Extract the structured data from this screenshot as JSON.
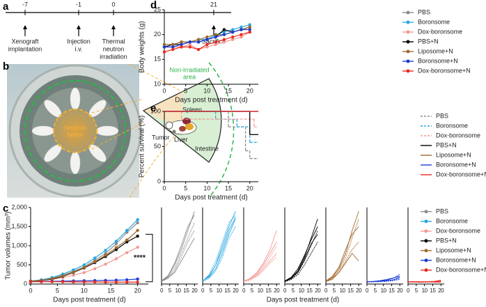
{
  "timeline": {
    "panel": "a",
    "events": [
      {
        "day": -7,
        "label": [
          "Xenograft",
          "implantation"
        ]
      },
      {
        "day": -1,
        "label": [
          "Injection",
          "i.v."
        ]
      },
      {
        "day": 0,
        "label": [
          "Thermal",
          "neutron",
          "irradiation"
        ]
      },
      {
        "day": 21,
        "label": [
          "Sacrifice"
        ]
      }
    ]
  },
  "diagram": {
    "panel": "b",
    "beam": [
      "Neutron",
      "beam"
    ],
    "area": [
      "Non-irradiated",
      "area"
    ],
    "organs": [
      "Spleen",
      "Tumor",
      "Liver",
      "Intestine"
    ]
  },
  "chart_data": [
    {
      "panel": "c",
      "type": "line",
      "ylabel": "Tumor volumes (mm³)",
      "xlabel": "Days post treatment (d)",
      "annotation": "****",
      "x": [
        0,
        2,
        4,
        6,
        8,
        10,
        12,
        14,
        16,
        18,
        20
      ],
      "xlim": [
        0,
        22
      ],
      "ylim": [
        0,
        2000
      ],
      "xticks": [
        0,
        5,
        10,
        15,
        20
      ],
      "yticks": [
        0,
        500,
        {
          "value": 1000,
          "label": "1,000"
        },
        {
          "value": 1500,
          "label": "1,500"
        },
        {
          "value": 2000,
          "label": "2,000"
        }
      ],
      "series": [
        {
          "name": "PBS",
          "color": "#8c8c8c",
          "values": [
            80,
            100,
            150,
            230,
            330,
            450,
            620,
            800,
            1050,
            1350,
            1600
          ]
        },
        {
          "name": "Boronsome",
          "color": "#2aa7e0",
          "values": [
            80,
            110,
            170,
            260,
            370,
            500,
            680,
            880,
            1120,
            1400,
            1680
          ]
        },
        {
          "name": "Dox-boronsome",
          "color": "#f29b94",
          "values": [
            70,
            90,
            120,
            170,
            230,
            300,
            400,
            520,
            660,
            820,
            960
          ]
        },
        {
          "name": "PBS+N",
          "color": "#000000",
          "values": [
            70,
            90,
            130,
            200,
            300,
            420,
            560,
            720,
            900,
            1100,
            1250
          ]
        },
        {
          "name": "Liposome+N",
          "color": "#a06a2c",
          "values": [
            75,
            95,
            140,
            210,
            310,
            430,
            580,
            750,
            950,
            1150,
            1400
          ]
        },
        {
          "name": "Boronsome+N",
          "color": "#1a3bd6",
          "values": [
            60,
            65,
            70,
            75,
            80,
            85,
            90,
            95,
            100,
            110,
            130
          ]
        },
        {
          "name": "Dox-boronsome+N",
          "color": "#ea2a1f",
          "values": [
            60,
            60,
            60,
            60,
            55,
            55,
            55,
            50,
            50,
            50,
            50
          ]
        }
      ]
    },
    {
      "type": "line",
      "xlabel": "Days post treatment (d)",
      "x": [
        0,
        4,
        8,
        12,
        16,
        20
      ],
      "xlim": [
        0,
        22
      ],
      "ylim": [
        0,
        2000
      ],
      "xticks": [
        0,
        5,
        10,
        15,
        20
      ],
      "panels": [
        {
          "color": "#8c8c8c",
          "lines": [
            [
              80,
              200,
              500,
              900,
              1400,
              1900
            ],
            [
              70,
              180,
              400,
              800,
              1200,
              1600
            ],
            [
              90,
              220,
              550,
              1000,
              1500,
              1800
            ],
            [
              60,
              150,
              350,
              700,
              1100,
              1400
            ],
            [
              80,
              160,
              300,
              600,
              900,
              1200
            ]
          ]
        },
        {
          "color": "#2aa7e0",
          "lines": [
            [
              80,
              200,
              500,
              1000,
              1500,
              1900
            ],
            [
              70,
              250,
              600,
              1100,
              1600,
              1800
            ],
            [
              90,
              180,
              400,
              800,
              1300,
              1700
            ],
            [
              60,
              150,
              350,
              700,
              1200,
              1500
            ],
            [
              80,
              220,
              500,
              900,
              1400,
              1750
            ]
          ]
        },
        {
          "color": "#f29b94",
          "lines": [
            [
              70,
              150,
              300,
              550,
              900,
              1400
            ],
            [
              60,
              120,
              250,
              450,
              700,
              1000
            ],
            [
              80,
              130,
              220,
              400,
              600,
              800
            ],
            [
              60,
              100,
              200,
              350,
              550,
              700
            ],
            [
              70,
              140,
              280,
              500,
              800,
              1100
            ]
          ]
        },
        {
          "color": "#000000",
          "lines": [
            [
              70,
              160,
              350,
              700,
              1200,
              1700
            ],
            [
              60,
              140,
              300,
              600,
              1000,
              1400
            ],
            [
              80,
              180,
              400,
              750,
              1150,
              1500
            ],
            [
              60,
              120,
              250,
              500,
              800,
              1100
            ],
            [
              70,
              150,
              320,
              650,
              1050,
              1300
            ]
          ]
        },
        {
          "color": "#a06a2c",
          "lines": [
            [
              70,
              180,
              400,
              800,
              1400,
              1900
            ],
            [
              60,
              150,
              350,
              700,
              1200,
              1700
            ],
            [
              80,
              200,
              450,
              900,
              1300,
              1500
            ],
            [
              60,
              120,
              300,
              600,
              900,
              1100
            ],
            [
              70,
              140,
              300,
              550,
              800,
              600
            ]
          ]
        },
        {
          "color": "#1a3bd6",
          "lines": [
            [
              60,
              70,
              80,
              100,
              150,
              250
            ],
            [
              50,
              60,
              70,
              80,
              100,
              150
            ],
            [
              60,
              70,
              90,
              120,
              160,
              200
            ],
            [
              50,
              55,
              60,
              70,
              90,
              120
            ],
            [
              60,
              65,
              75,
              85,
              110,
              180
            ]
          ]
        },
        {
          "color": "#ea2a1f",
          "lines": [
            [
              60,
              60,
              55,
              55,
              50,
              50
            ],
            [
              50,
              55,
              60,
              65,
              70,
              80
            ],
            [
              60,
              55,
              50,
              60,
              70,
              100
            ],
            [
              50,
              50,
              45,
              50,
              55,
              60
            ],
            [
              60,
              65,
              60,
              55,
              60,
              70
            ]
          ]
        }
      ]
    },
    {
      "panel": "d",
      "type": "line",
      "ylabel": "Body weights (g)",
      "xlabel": "Days post treatment (d)",
      "x": [
        0,
        2,
        4,
        6,
        8,
        10,
        12,
        14,
        16,
        18,
        20
      ],
      "xlim": [
        0,
        22
      ],
      "ylim": [
        10,
        25
      ],
      "xticks": [
        0,
        5,
        10,
        15,
        20
      ],
      "yticks": [
        10,
        15,
        20,
        25
      ],
      "series": [
        {
          "name": "PBS",
          "color": "#8c8c8c",
          "values": [
            18,
            18,
            18.5,
            18.5,
            19,
            19,
            19.5,
            20,
            20.5,
            21,
            21.5
          ]
        },
        {
          "name": "Boronsome",
          "color": "#2aa7e0",
          "values": [
            18,
            18,
            18.5,
            18.5,
            19,
            19,
            20,
            20.5,
            21,
            21.5,
            22
          ]
        },
        {
          "name": "Dox-boronsome",
          "color": "#f29b94",
          "values": [
            17.5,
            17.5,
            17.5,
            18,
            17,
            17.5,
            18,
            18.5,
            19,
            19.5,
            20.5
          ]
        },
        {
          "name": "PBS+N",
          "color": "#000000",
          "values": [
            17.5,
            18,
            18,
            18.5,
            18.5,
            19,
            19.5,
            21,
            20.5,
            21,
            21.5
          ]
        },
        {
          "name": "Liposome+N",
          "color": "#a06a2c",
          "values": [
            18,
            18,
            18.5,
            18.5,
            19,
            19.5,
            20,
            20,
            20.5,
            21,
            21.5
          ]
        },
        {
          "name": "Boronsome+N",
          "color": "#1a3bd6",
          "values": [
            17.5,
            17.5,
            18,
            18.5,
            18.5,
            19,
            19.5,
            20,
            20.5,
            21,
            21
          ]
        },
        {
          "name": "Dox-boronsome+N",
          "color": "#ea2a1f",
          "values": [
            16.5,
            17,
            17.5,
            17.5,
            17,
            18,
            18.5,
            19,
            19.5,
            20,
            20.5
          ]
        }
      ]
    },
    {
      "panel": "e",
      "type": "step",
      "ylabel": "Percent survival (%)",
      "xlabel": "Days post treatment (d)",
      "xlim": [
        0,
        22
      ],
      "ylim": [
        0,
        100
      ],
      "xticks": [
        0,
        5,
        10,
        15,
        20
      ],
      "yticks": [
        0,
        50,
        100
      ],
      "series": [
        {
          "name": "PBS",
          "color": "#8c8c8c",
          "linestyle": "dashed",
          "x": [
            0,
            15,
            19,
            20,
            22
          ],
          "values": [
            100,
            78,
            44,
            33,
            33
          ]
        },
        {
          "name": "Boronsome",
          "color": "#2aa7e0",
          "linestyle": "dashed",
          "x": [
            0,
            12,
            17,
            20,
            22
          ],
          "values": [
            100,
            89,
            78,
            56,
            56
          ]
        },
        {
          "name": "Dox-boronsome",
          "color": "#f29b94",
          "linestyle": "dashed",
          "x": [
            0,
            4,
            21,
            22
          ],
          "values": [
            100,
            89,
            78,
            78
          ]
        },
        {
          "name": "PBS+N",
          "color": "#000000",
          "linestyle": "solid",
          "x": [
            0,
            20,
            22
          ],
          "values": [
            100,
            67,
            67
          ]
        },
        {
          "name": "Liposome+N",
          "color": "#a06a2c",
          "linestyle": "solid",
          "x": [
            0,
            22
          ],
          "values": [
            100,
            100
          ]
        },
        {
          "name": "Boronsome+N",
          "color": "#1a3bd6",
          "linestyle": "solid",
          "x": [
            0,
            22
          ],
          "values": [
            100,
            100
          ]
        },
        {
          "name": "Dox-boronsome+N",
          "color": "#ea2a1f",
          "linestyle": "solid",
          "x": [
            0,
            22
          ],
          "values": [
            100,
            100
          ]
        }
      ]
    }
  ]
}
